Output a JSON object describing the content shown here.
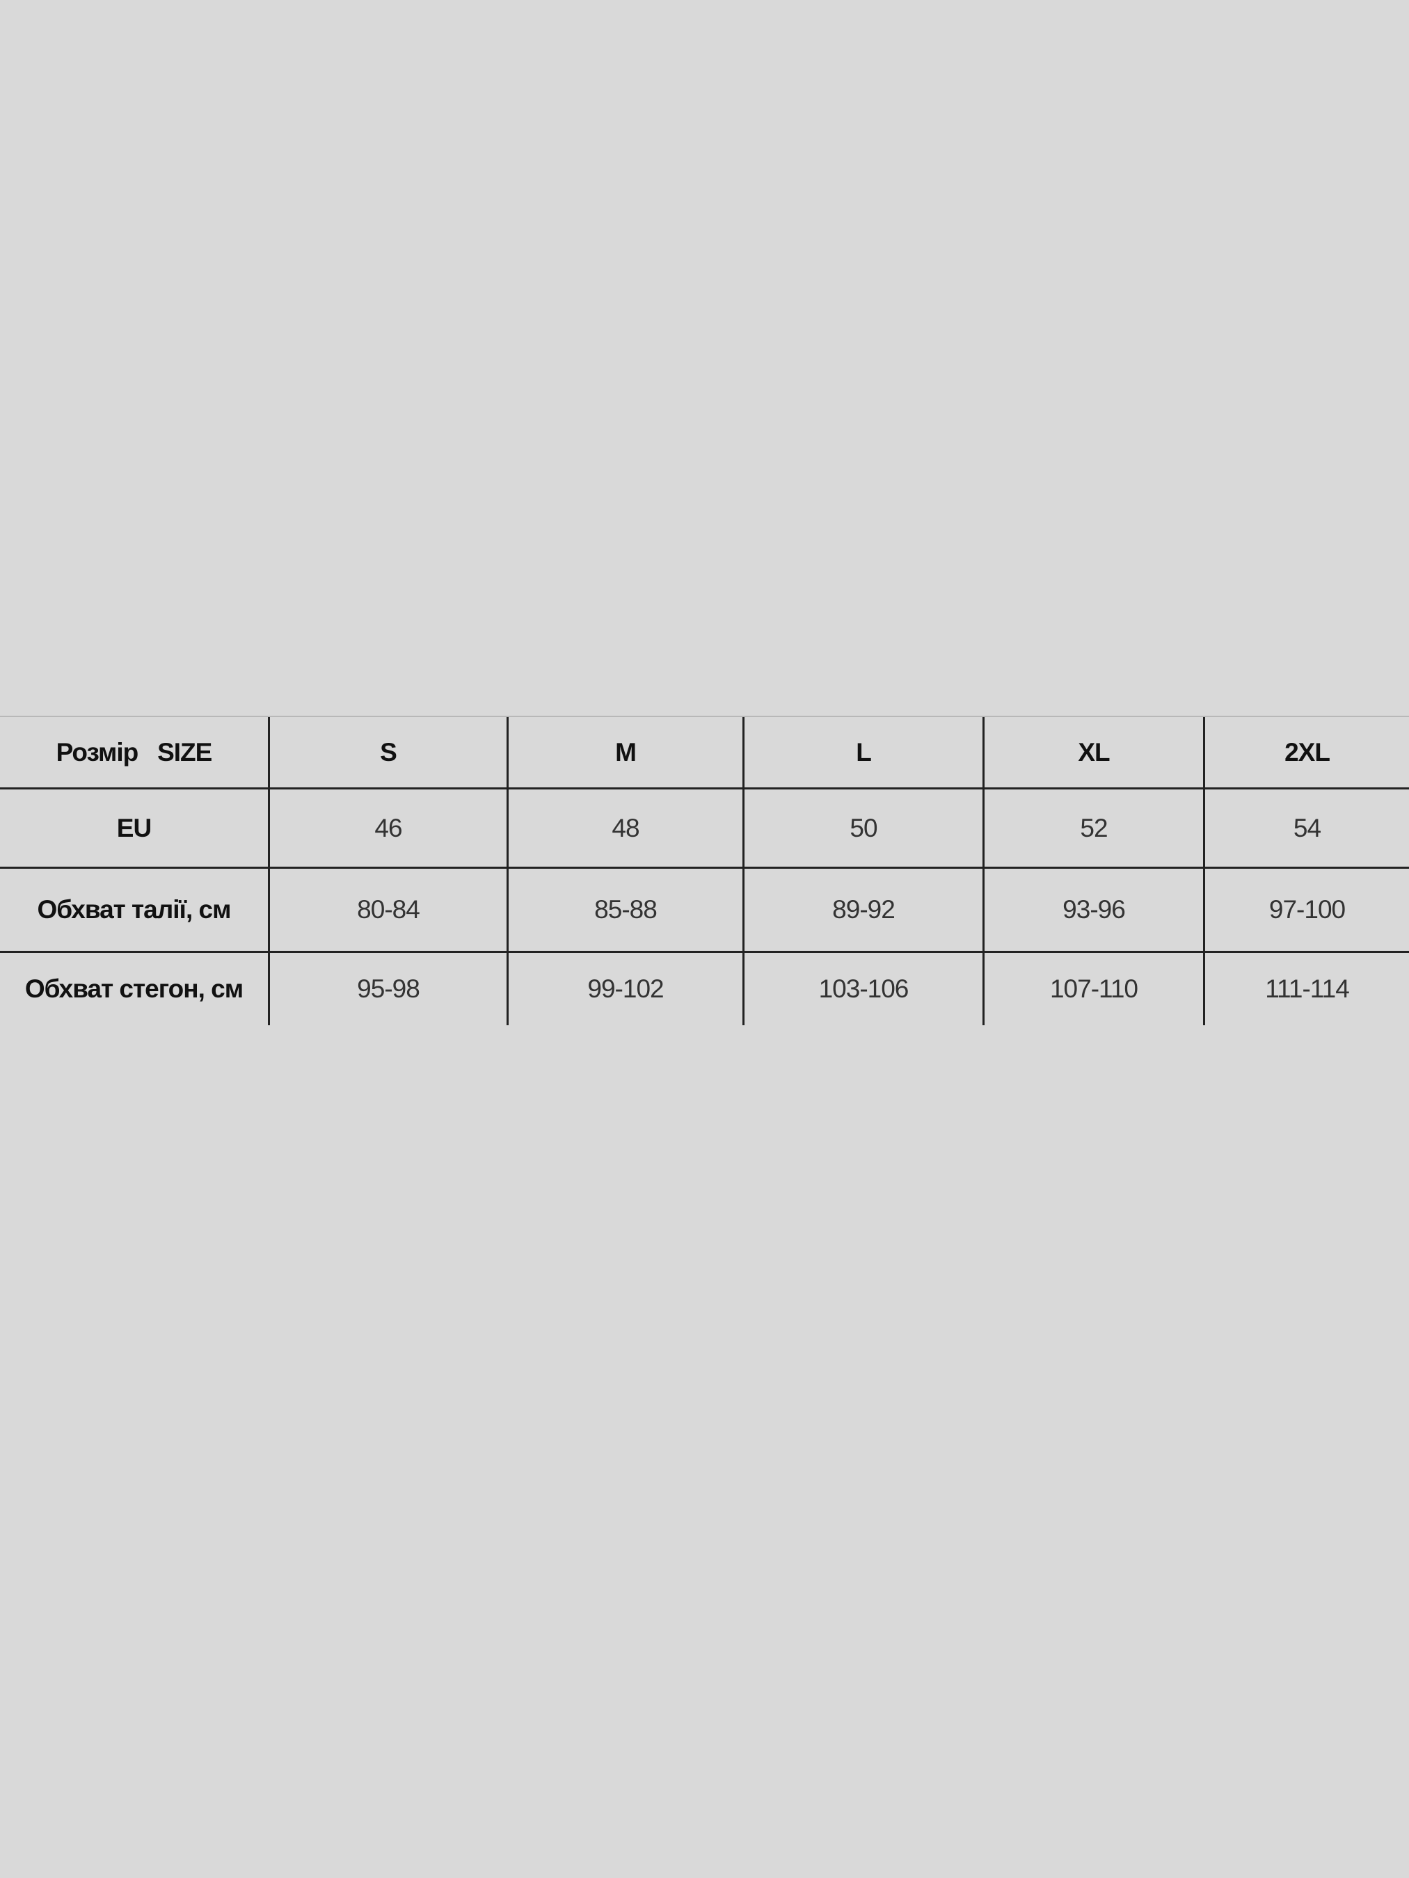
{
  "table": {
    "header": [
      "Розмір   SIZE",
      "S",
      "M",
      "L",
      "XL",
      "2XL"
    ],
    "rows": [
      [
        "EU",
        "46",
        "48",
        "50",
        "52",
        "54"
      ],
      [
        "Обхват талії, см",
        "80-84",
        "85-88",
        "89-92",
        "93-96",
        "97-100"
      ],
      [
        "Обхват стегон, см",
        "95-98",
        "99-102",
        "103-106",
        "107-110",
        "111-114"
      ]
    ]
  },
  "colors": {
    "background": "#d9d9d9",
    "lines": "#222222",
    "text": "#333333"
  }
}
